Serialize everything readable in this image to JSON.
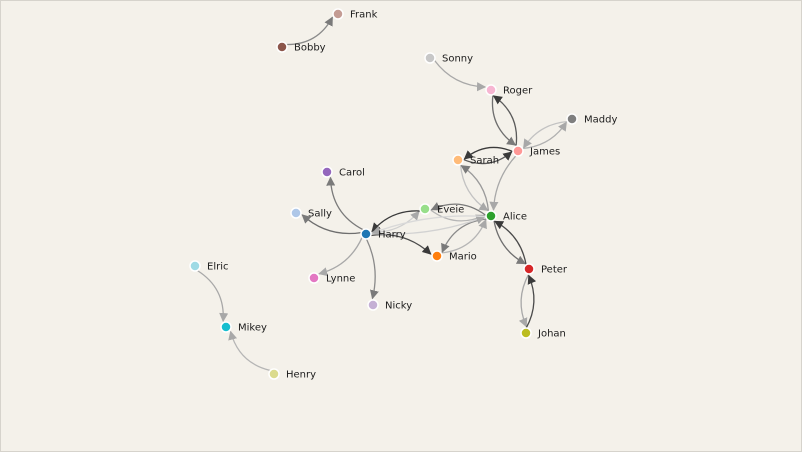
{
  "nodes": [
    {
      "id": "Frank",
      "label": "Frank",
      "color": "#c49c94"
    },
    {
      "id": "Bobby",
      "label": "Bobby",
      "color": "#8c564b"
    },
    {
      "id": "Sonny",
      "label": "Sonny",
      "color": "#c7c7c7"
    },
    {
      "id": "Roger",
      "label": "Roger",
      "color": "#f7b6d2"
    },
    {
      "id": "Maddy",
      "label": "Maddy",
      "color": "#7f7f7f"
    },
    {
      "id": "James",
      "label": "James",
      "color": "#ff9896"
    },
    {
      "id": "Sarah",
      "label": "Sarah",
      "color": "#ffbb78"
    },
    {
      "id": "Carol",
      "label": "Carol",
      "color": "#9467bd"
    },
    {
      "id": "Sally",
      "label": "Sally",
      "color": "#aec7e8"
    },
    {
      "id": "Eveie",
      "label": "Eveie",
      "color": "#98df8a"
    },
    {
      "id": "Alice",
      "label": "Alice",
      "color": "#2ca02c"
    },
    {
      "id": "Harry",
      "label": "Harry",
      "color": "#1f77b4"
    },
    {
      "id": "Mario",
      "label": "Mario",
      "color": "#ff7f0e"
    },
    {
      "id": "Peter",
      "label": "Peter",
      "color": "#d62728"
    },
    {
      "id": "Elric",
      "label": "Elric",
      "color": "#9edae5"
    },
    {
      "id": "Lynne",
      "label": "Lynne",
      "color": "#e377c2"
    },
    {
      "id": "Nicky",
      "label": "Nicky",
      "color": "#c5b0d5"
    },
    {
      "id": "Mikey",
      "label": "Mikey",
      "color": "#17becf"
    },
    {
      "id": "Johan",
      "label": "Johan",
      "color": "#bcbd22"
    },
    {
      "id": "Henry",
      "label": "Henry",
      "color": "#dbdb8d"
    }
  ],
  "edges": [
    {
      "source": "Bobby",
      "target": "Frank"
    },
    {
      "source": "Sonny",
      "target": "Roger"
    },
    {
      "source": "Roger",
      "target": "James"
    },
    {
      "source": "James",
      "target": "Roger"
    },
    {
      "source": "James",
      "target": "Maddy"
    },
    {
      "source": "Maddy",
      "target": "James"
    },
    {
      "source": "Sarah",
      "target": "James"
    },
    {
      "source": "James",
      "target": "Sarah"
    },
    {
      "source": "James",
      "target": "Alice"
    },
    {
      "source": "Sarah",
      "target": "Alice"
    },
    {
      "source": "Alice",
      "target": "Sarah"
    },
    {
      "source": "Eveie",
      "target": "Alice"
    },
    {
      "source": "Alice",
      "target": "Eveie"
    },
    {
      "source": "Alice",
      "target": "Peter"
    },
    {
      "source": "Peter",
      "target": "Alice"
    },
    {
      "source": "Peter",
      "target": "Johan"
    },
    {
      "source": "Johan",
      "target": "Peter"
    },
    {
      "source": "Mario",
      "target": "Alice"
    },
    {
      "source": "Alice",
      "target": "Mario"
    },
    {
      "source": "Harry",
      "target": "Eveie"
    },
    {
      "source": "Eveie",
      "target": "Harry"
    },
    {
      "source": "Harry",
      "target": "Carol"
    },
    {
      "source": "Harry",
      "target": "Sally"
    },
    {
      "source": "Harry",
      "target": "Lynne"
    },
    {
      "source": "Harry",
      "target": "Nicky"
    },
    {
      "source": "Harry",
      "target": "Mario"
    },
    {
      "source": "Harry",
      "target": "Alice"
    },
    {
      "source": "Alice",
      "target": "Harry"
    },
    {
      "source": "Elric",
      "target": "Mikey"
    },
    {
      "source": "Henry",
      "target": "Mikey"
    }
  ]
}
